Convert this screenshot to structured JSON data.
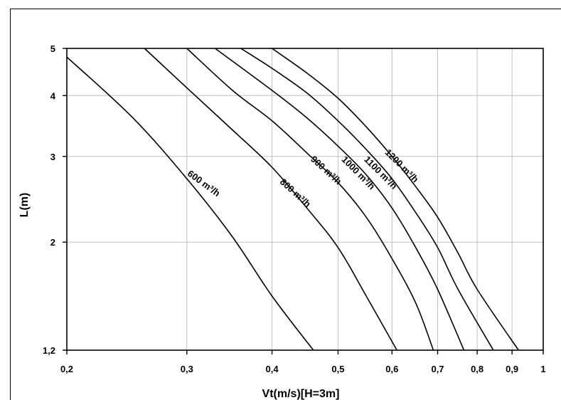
{
  "chart_data": {
    "type": "line",
    "xlabel": "Vt(m/s)[H=3m]",
    "ylabel": "L(m)",
    "x_scale": "log",
    "y_scale": "log",
    "xlim": [
      0.2,
      1
    ],
    "ylim": [
      1.2,
      5
    ],
    "grid": true,
    "x_ticks": [
      0.2,
      0.3,
      0.4,
      0.5,
      0.6,
      0.7,
      0.8,
      0.9,
      1
    ],
    "x_tick_labels": [
      "0,2",
      "0,3",
      "0,4",
      "0,5",
      "0,6",
      "0,7",
      "0,8",
      "0,9",
      "1"
    ],
    "y_ticks": [
      1.2,
      2,
      3,
      4,
      5
    ],
    "y_tick_labels": [
      "1,2",
      "2",
      "3",
      "4",
      "5"
    ],
    "series": [
      {
        "name": "600 m³/h",
        "points": [
          [
            0.2,
            4.8
          ],
          [
            0.25,
            3.6
          ],
          [
            0.3,
            2.7
          ],
          [
            0.35,
            2.05
          ],
          [
            0.4,
            1.55
          ],
          [
            0.46,
            1.2
          ]
        ]
      },
      {
        "name": "800 m³/h",
        "points": [
          [
            0.26,
            5.0
          ],
          [
            0.3,
            4.15
          ],
          [
            0.35,
            3.4
          ],
          [
            0.4,
            2.85
          ],
          [
            0.45,
            2.35
          ],
          [
            0.5,
            1.95
          ],
          [
            0.55,
            1.55
          ],
          [
            0.61,
            1.2
          ]
        ]
      },
      {
        "name": "900 m³/h",
        "points": [
          [
            0.3,
            5.0
          ],
          [
            0.35,
            4.1
          ],
          [
            0.4,
            3.55
          ],
          [
            0.45,
            3.05
          ],
          [
            0.5,
            2.65
          ],
          [
            0.55,
            2.25
          ],
          [
            0.6,
            1.85
          ],
          [
            0.65,
            1.5
          ],
          [
            0.69,
            1.2
          ]
        ]
      },
      {
        "name": "1000 m³/h",
        "points": [
          [
            0.33,
            5.0
          ],
          [
            0.4,
            4.1
          ],
          [
            0.45,
            3.6
          ],
          [
            0.5,
            3.15
          ],
          [
            0.55,
            2.75
          ],
          [
            0.6,
            2.35
          ],
          [
            0.65,
            1.95
          ],
          [
            0.7,
            1.6
          ],
          [
            0.765,
            1.2
          ]
        ]
      },
      {
        "name": "1100 m³/h",
        "points": [
          [
            0.36,
            5.0
          ],
          [
            0.4,
            4.55
          ],
          [
            0.45,
            4.05
          ],
          [
            0.5,
            3.55
          ],
          [
            0.55,
            3.1
          ],
          [
            0.6,
            2.7
          ],
          [
            0.65,
            2.3
          ],
          [
            0.7,
            1.95
          ],
          [
            0.75,
            1.6
          ],
          [
            0.845,
            1.2
          ]
        ]
      },
      {
        "name": "1200 m³/h",
        "points": [
          [
            0.4,
            5.0
          ],
          [
            0.45,
            4.45
          ],
          [
            0.5,
            3.95
          ],
          [
            0.55,
            3.45
          ],
          [
            0.6,
            3.0
          ],
          [
            0.65,
            2.6
          ],
          [
            0.7,
            2.25
          ],
          [
            0.75,
            1.9
          ],
          [
            0.8,
            1.6
          ],
          [
            0.92,
            1.2
          ]
        ]
      }
    ],
    "curve_labels": [
      {
        "text": "600 m³/h",
        "x": 0.3,
        "y": 2.75,
        "angle": 36
      },
      {
        "text": "800 m³/h",
        "x": 0.41,
        "y": 2.65,
        "angle": 42
      },
      {
        "text": "900 m³/h",
        "x": 0.455,
        "y": 2.95,
        "angle": 42
      },
      {
        "text": "1000 m³/h",
        "x": 0.505,
        "y": 2.95,
        "angle": 45
      },
      {
        "text": "1100 m³/h",
        "x": 0.545,
        "y": 2.95,
        "angle": 45
      },
      {
        "text": "1200 m³/h",
        "x": 0.585,
        "y": 3.05,
        "angle": 45
      }
    ]
  }
}
